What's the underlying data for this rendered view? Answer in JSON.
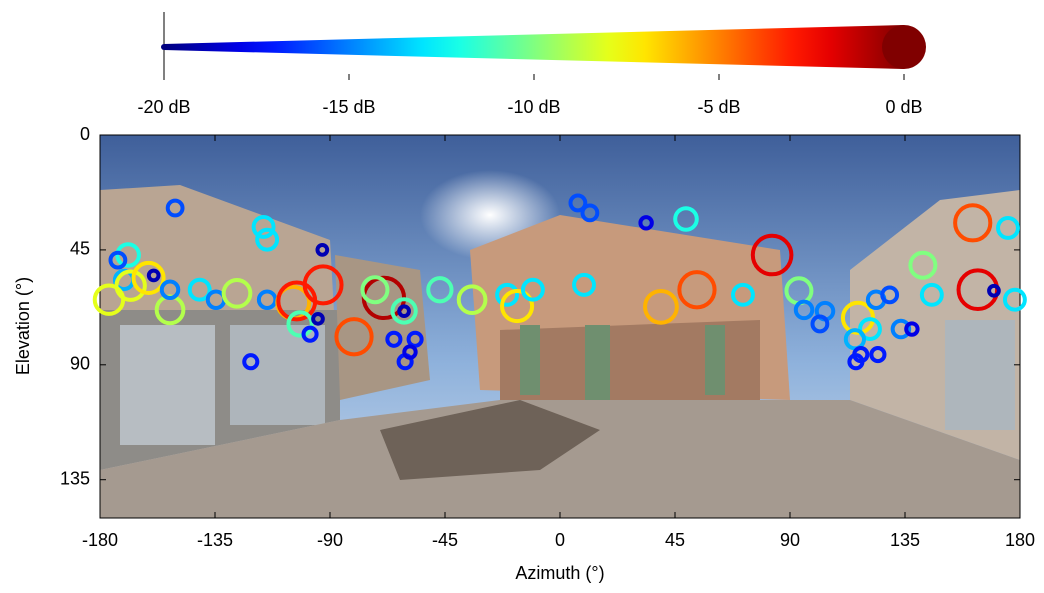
{
  "chart_data": {
    "type": "scatter",
    "xlabel": "Azimuth (°)",
    "ylabel": "Elevation (°)",
    "xlim": [
      -180,
      180
    ],
    "ylim": [
      0,
      150
    ],
    "xticks": [
      -180,
      -135,
      -90,
      -45,
      0,
      45,
      90,
      135,
      180
    ],
    "yticks": [
      0,
      45,
      90,
      135
    ],
    "y_inverted": true,
    "colorbar": {
      "lim": [
        -20,
        0
      ],
      "colormap": "jet",
      "ticks": [
        {
          "value": -20,
          "label": "-20 dB"
        },
        {
          "value": -15,
          "label": "-15 dB"
        },
        {
          "value": -10,
          "label": "-10 dB"
        },
        {
          "value": -5,
          "label": "-5 dB"
        },
        {
          "value": 0,
          "label": "0 dB"
        }
      ]
    },
    "x": [
      -150.6,
      -116,
      -114.6,
      -169,
      -173,
      -159,
      -170.6,
      -168,
      -176.5,
      -161,
      -152.6,
      -152.6,
      -141,
      -134.6,
      -126.4,
      -114.6,
      -104.4,
      -103,
      -92.7,
      -101.7,
      -97.8,
      -94.7,
      -93,
      -80.6,
      -68.9,
      -72.4,
      -61,
      -61,
      -65,
      -56.7,
      -60.6,
      -58.7,
      -121,
      -47,
      -34.4,
      -20.7,
      -16.8,
      -10.6,
      7,
      11.7,
      9.4,
      33.7,
      49.3,
      39.5,
      53.6,
      71.6,
      83,
      93.5,
      95.5,
      103.7,
      101.7,
      116.6,
      121.3,
      115.4,
      117.7,
      115.8,
      124.4,
      123.7,
      129,
      133.4,
      137.7,
      142,
      145.5,
      161.5,
      175.3,
      163.5,
      169.8,
      178
    ],
    "values": [
      28.6,
      36,
      41,
      47,
      49,
      55,
      56.8,
      59,
      64.5,
      56,
      68.5,
      60.6,
      60.6,
      64.5,
      62,
      64.5,
      65.7,
      65,
      58.7,
      74,
      78,
      72,
      45,
      79,
      63.8,
      60.6,
      68.9,
      69,
      80,
      80,
      88.8,
      85,
      88.8,
      60.6,
      64.5,
      62.6,
      67,
      60.6,
      26.6,
      30.5,
      58.7,
      34.4,
      32.9,
      67.3,
      60.6,
      62.6,
      47,
      61,
      68.5,
      69,
      74,
      71.6,
      76,
      80,
      86,
      88.8,
      86,
      64.5,
      62.6,
      76,
      76,
      51,
      62.6,
      34.4,
      36.4,
      60.6,
      61,
      64.5
    ],
    "levels": [
      -16,
      -13,
      -13,
      -12,
      -16,
      -19,
      -14,
      -8,
      -8,
      -7,
      -9,
      -15,
      -13,
      -15,
      -9,
      -15,
      -6,
      -3,
      -3,
      -11,
      -17,
      -19,
      -19,
      -4,
      -1,
      -10,
      -11,
      -19,
      -17,
      -17,
      -17,
      -18,
      -17,
      -11,
      -9,
      -13,
      -7,
      -13,
      -16,
      -16,
      -13,
      -18,
      -12,
      -6,
      -4,
      -13,
      -2,
      -10,
      -15,
      -15,
      -16,
      -7,
      -13,
      -14,
      -17,
      -17,
      -17,
      -15,
      -16,
      -15,
      -18,
      -10,
      -13,
      -4,
      -13,
      -2,
      -19,
      -13
    ]
  }
}
